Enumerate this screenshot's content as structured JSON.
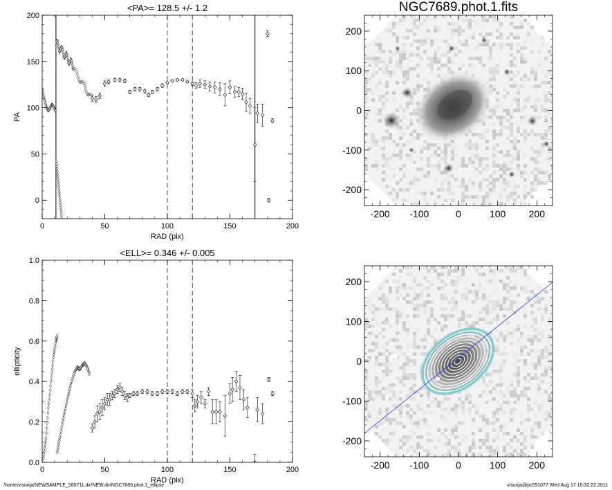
{
  "footer": {
    "left": "/home/visurija/NEWSAMPLE_200711.dir/NEW.dir/NGC7689.phot.1_ellipse",
    "right": "visurija@pc091077  Wed Aug 17 10:32:22 2011"
  },
  "chart_data": [
    {
      "type": "scatter",
      "title": "<PA>= 128.5 +/-   1.2",
      "xlabel": "RAD (pix)",
      "ylabel": "PA",
      "xlim": [
        0,
        200
      ],
      "ylim": [
        -20,
        200
      ],
      "xticks": [
        "0",
        "50",
        "100",
        "150",
        "200"
      ],
      "yticks": [
        "0",
        "50",
        "100",
        "150",
        "200"
      ],
      "vlines_dashed": [
        100,
        120
      ],
      "vlines_solid": [
        11,
        170
      ],
      "markers_with_errorbars": [
        [
          40,
          110,
          3
        ],
        [
          43,
          109,
          3
        ],
        [
          46,
          113,
          3
        ],
        [
          50,
          126,
          3
        ],
        [
          53,
          128,
          2
        ],
        [
          58,
          130,
          2
        ],
        [
          62,
          130,
          2
        ],
        [
          66,
          129,
          2
        ],
        [
          70,
          117,
          2
        ],
        [
          74,
          120,
          2
        ],
        [
          78,
          120,
          2
        ],
        [
          82,
          118,
          2
        ],
        [
          85,
          114,
          2
        ],
        [
          88,
          117,
          2
        ],
        [
          92,
          120,
          2
        ],
        [
          96,
          124,
          2
        ],
        [
          100,
          127,
          1
        ],
        [
          104,
          129,
          1
        ],
        [
          108,
          130,
          1
        ],
        [
          112,
          130,
          1
        ],
        [
          116,
          128,
          1
        ],
        [
          120,
          126,
          2
        ],
        [
          123,
          124,
          3
        ],
        [
          126,
          126,
          4
        ],
        [
          130,
          125,
          4
        ],
        [
          134,
          123,
          5
        ],
        [
          138,
          122,
          6
        ],
        [
          142,
          120,
          7
        ],
        [
          146,
          114,
          12
        ],
        [
          150,
          122,
          7
        ],
        [
          154,
          117,
          6
        ],
        [
          157,
          117,
          5
        ],
        [
          160,
          115,
          6
        ],
        [
          163,
          106,
          10
        ],
        [
          166,
          102,
          8
        ],
        [
          170,
          60,
          40
        ],
        [
          172,
          94,
          10
        ],
        [
          176,
          92,
          12
        ],
        [
          180,
          180,
          3
        ],
        [
          181,
          0,
          2
        ],
        [
          184,
          86,
          2
        ]
      ]
    },
    {
      "type": "image",
      "title": "NGC7689.phot.1.fits",
      "xlim": [
        -240,
        240
      ],
      "ylim": [
        -240,
        240
      ],
      "xticks": [
        "-200",
        "-100",
        "0",
        "100",
        "200"
      ],
      "yticks": [
        "-200",
        "-100",
        "0",
        "100",
        "200"
      ]
    },
    {
      "type": "scatter",
      "title": "<ELL>= 0.346 +/-  0.005",
      "xlabel": "RAD (pix)",
      "ylabel": "ellipticity",
      "xlim": [
        0,
        200
      ],
      "ylim": [
        0,
        1
      ],
      "xticks": [
        "0",
        "50",
        "100",
        "150",
        "200"
      ],
      "yticks": [
        "0.0",
        "0.2",
        "0.4",
        "0.6",
        "0.8",
        "1.0"
      ],
      "vlines_dashed": [
        100,
        120
      ],
      "markers_with_errorbars": [
        [
          40,
          0.17,
          0.02
        ],
        [
          42,
          0.2,
          0.03
        ],
        [
          44,
          0.24,
          0.04
        ],
        [
          46,
          0.25,
          0.04
        ],
        [
          48,
          0.27,
          0.04
        ],
        [
          50,
          0.29,
          0.03
        ],
        [
          52,
          0.31,
          0.03
        ],
        [
          54,
          0.31,
          0.03
        ],
        [
          56,
          0.33,
          0.02
        ],
        [
          58,
          0.34,
          0.02
        ],
        [
          60,
          0.36,
          0.02
        ],
        [
          62,
          0.37,
          0.02
        ],
        [
          64,
          0.35,
          0.02
        ],
        [
          66,
          0.33,
          0.02
        ],
        [
          68,
          0.32,
          0.02
        ],
        [
          70,
          0.33,
          0.01
        ],
        [
          73,
          0.34,
          0.01
        ],
        [
          76,
          0.34,
          0.01
        ],
        [
          80,
          0.35,
          0.01
        ],
        [
          84,
          0.35,
          0.01
        ],
        [
          88,
          0.34,
          0.01
        ],
        [
          92,
          0.34,
          0.01
        ],
        [
          96,
          0.35,
          0.01
        ],
        [
          100,
          0.35,
          0.01
        ],
        [
          104,
          0.35,
          0.01
        ],
        [
          108,
          0.34,
          0.01
        ],
        [
          112,
          0.35,
          0.01
        ],
        [
          116,
          0.35,
          0.01
        ],
        [
          120,
          0.34,
          0.02
        ],
        [
          122,
          0.28,
          0.03
        ],
        [
          124,
          0.3,
          0.03
        ],
        [
          127,
          0.32,
          0.03
        ],
        [
          130,
          0.29,
          0.02
        ],
        [
          133,
          0.35,
          0.02
        ],
        [
          136,
          0.25,
          0.06
        ],
        [
          139,
          0.25,
          0.06
        ],
        [
          142,
          0.25,
          0.05
        ],
        [
          146,
          0.23,
          0.1
        ],
        [
          150,
          0.34,
          0.05
        ],
        [
          152,
          0.36,
          0.06
        ],
        [
          155,
          0.4,
          0.05
        ],
        [
          158,
          0.37,
          0.06
        ],
        [
          161,
          0.31,
          0.05
        ],
        [
          164,
          0.27,
          0.05
        ],
        [
          170,
          0.0,
          0.04
        ],
        [
          172,
          0.26,
          0.06
        ],
        [
          176,
          0.24,
          0.05
        ],
        [
          181,
          0.41,
          0.01
        ],
        [
          184,
          0.34,
          0.01
        ]
      ],
      "dense_inner_curves": [
        [
          [
            1,
            0.02
          ],
          [
            3,
            0.12
          ],
          [
            5,
            0.27
          ],
          [
            7,
            0.4
          ],
          [
            9,
            0.52
          ],
          [
            11,
            0.6
          ],
          [
            12,
            0.63
          ]
        ],
        [
          [
            12,
            0.05
          ],
          [
            14,
            0.12
          ],
          [
            17,
            0.22
          ],
          [
            20,
            0.31
          ],
          [
            23,
            0.39
          ],
          [
            26,
            0.45
          ],
          [
            28,
            0.47
          ],
          [
            30,
            0.46
          ],
          [
            32,
            0.48
          ],
          [
            34,
            0.49
          ],
          [
            36,
            0.47
          ],
          [
            38,
            0.43
          ]
        ]
      ]
    },
    {
      "type": "image",
      "title": "",
      "xlim": [
        -240,
        240
      ],
      "ylim": [
        -240,
        240
      ],
      "xticks": [
        "-200",
        "-100",
        "0",
        "100",
        "200"
      ],
      "yticks": [
        "-200",
        "-100",
        "0",
        "100",
        "200"
      ],
      "overlay": {
        "isophote_pa_deg": 128.5,
        "isophote_ellipticity": 0.346,
        "line_slope_deg": 38.5
      }
    }
  ]
}
